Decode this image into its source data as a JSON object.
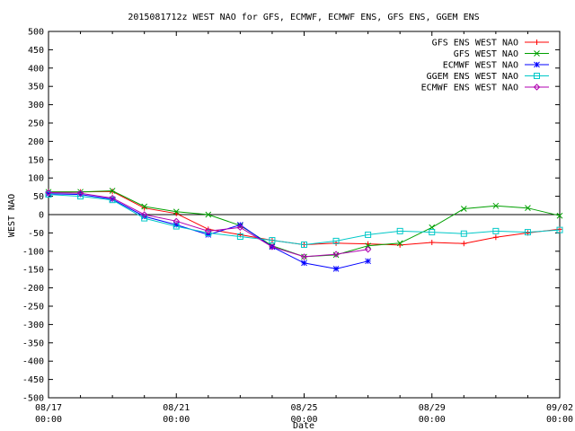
{
  "chart_data": {
    "type": "line",
    "title": "2015081712z WEST NAO for GFS, ECMWF, ECMWF ENS, GFS ENS, GGEM ENS",
    "xlabel": "Date",
    "ylabel": "WEST NAO",
    "ylim": [
      -500,
      500
    ],
    "yticks": [
      500,
      450,
      400,
      350,
      300,
      250,
      200,
      150,
      100,
      50,
      0,
      -50,
      -100,
      -150,
      -200,
      -250,
      -300,
      -350,
      -400,
      -450,
      -500
    ],
    "xlim": [
      0,
      16
    ],
    "xticks": [
      {
        "x": 0,
        "line1": "08/17",
        "line2": "00:00"
      },
      {
        "x": 4,
        "line1": "08/21",
        "line2": "00:00"
      },
      {
        "x": 8,
        "line1": "08/25",
        "line2": "00:00"
      },
      {
        "x": 12,
        "line1": "08/29",
        "line2": "00:00"
      },
      {
        "x": 16,
        "line1": "09/02",
        "line2": "00:00"
      }
    ],
    "zero_line": true,
    "legend_position": "top-right",
    "series": [
      {
        "name": "GFS ENS WEST NAO",
        "color": "#ff0000",
        "marker": "plus",
        "x": [
          0,
          1,
          2,
          3,
          4,
          5,
          6,
          7,
          8,
          9,
          10,
          11,
          12,
          13,
          14,
          15,
          16
        ],
        "y": [
          62,
          62,
          63,
          18,
          3,
          -40,
          -55,
          -70,
          -82,
          -78,
          -80,
          -83,
          -76,
          -79,
          -62,
          -50,
          -40
        ]
      },
      {
        "name": "GFS WEST NAO",
        "color": "#00a000",
        "marker": "x",
        "x": [
          0,
          1,
          2,
          3,
          4,
          5,
          6,
          7,
          8,
          9,
          10,
          11,
          12,
          13,
          14,
          15,
          16
        ],
        "y": [
          62,
          62,
          65,
          22,
          8,
          0,
          -30,
          -85,
          -115,
          -110,
          -85,
          -78,
          -35,
          16,
          24,
          18,
          -3
        ]
      },
      {
        "name": "ECMWF WEST NAO",
        "color": "#0000ff",
        "marker": "star",
        "x": [
          0,
          1,
          2,
          3,
          4,
          5,
          6,
          7,
          8,
          9,
          10
        ],
        "y": [
          57,
          55,
          42,
          -5,
          -28,
          -55,
          -28,
          -88,
          -132,
          -148,
          -127
        ]
      },
      {
        "name": "GGEM ENS WEST NAO",
        "color": "#00c8c8",
        "marker": "square",
        "x": [
          0,
          1,
          2,
          3,
          4,
          5,
          6,
          7,
          8,
          9,
          10,
          11,
          12,
          13,
          14,
          15,
          16
        ],
        "y": [
          55,
          50,
          40,
          -10,
          -32,
          -50,
          -60,
          -70,
          -82,
          -72,
          -55,
          -45,
          -48,
          -52,
          -45,
          -48,
          -42
        ]
      },
      {
        "name": "ECMWF ENS WEST NAO",
        "color": "#b000b0",
        "marker": "diamond",
        "x": [
          0,
          1,
          2,
          3,
          4,
          5,
          6,
          7,
          8,
          9,
          10
        ],
        "y": [
          60,
          58,
          45,
          0,
          -18,
          -45,
          -35,
          -88,
          -115,
          -108,
          -95
        ]
      }
    ]
  }
}
